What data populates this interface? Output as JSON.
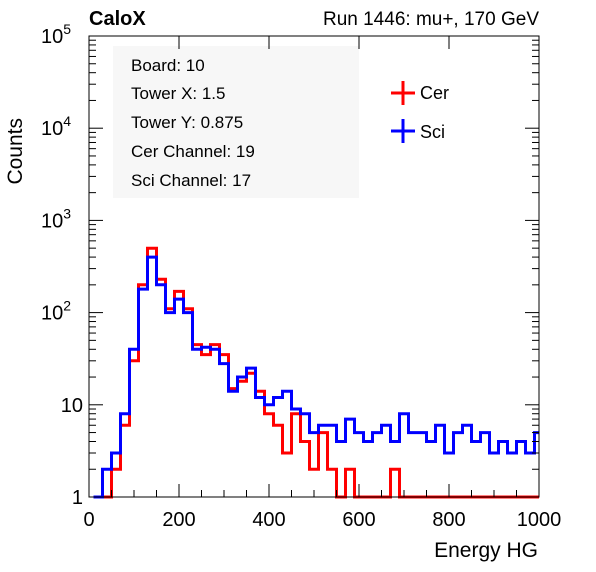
{
  "header": {
    "left": "CaloX",
    "right": "Run 1446: mu+, 170 GeV"
  },
  "info_box": [
    "Board: 10",
    "Tower X: 1.5",
    "Tower Y: 0.875",
    "Cer Channel: 19",
    "Sci Channel: 17"
  ],
  "chart_data": {
    "type": "line",
    "style": "step histogram",
    "xlabel": "Energy HG",
    "ylabel": "Counts",
    "xlim": [
      0,
      1000
    ],
    "ylim": [
      1,
      100000
    ],
    "yscale": "log",
    "x_ticks": [
      0,
      200,
      400,
      600,
      800,
      1000
    ],
    "x_tick_labels": [
      "0",
      "200",
      "400",
      "600",
      "800",
      "1000"
    ],
    "y_ticks": [
      1,
      10,
      100,
      1000,
      10000,
      100000
    ],
    "y_tick_labels": [
      {
        "base": "1",
        "exp": ""
      },
      {
        "base": "10",
        "exp": ""
      },
      {
        "base": "10",
        "exp": "2"
      },
      {
        "base": "10",
        "exp": "3"
      },
      {
        "base": "10",
        "exp": "4"
      },
      {
        "base": "10",
        "exp": "5"
      }
    ],
    "legend_position": "top-right",
    "grid": false,
    "series": [
      {
        "name": "Cer",
        "color": "#ff0000",
        "points": [
          [
            20,
            1
          ],
          [
            40,
            1
          ],
          [
            60,
            2
          ],
          [
            80,
            6
          ],
          [
            100,
            30
          ],
          [
            120,
            200
          ],
          [
            140,
            500
          ],
          [
            160,
            230
          ],
          [
            180,
            110
          ],
          [
            200,
            170
          ],
          [
            220,
            110
          ],
          [
            240,
            45
          ],
          [
            260,
            35
          ],
          [
            280,
            45
          ],
          [
            300,
            35
          ],
          [
            320,
            15
          ],
          [
            340,
            18
          ],
          [
            360,
            22
          ],
          [
            380,
            14
          ],
          [
            400,
            8
          ],
          [
            420,
            6
          ],
          [
            440,
            3
          ],
          [
            460,
            8
          ],
          [
            480,
            4
          ],
          [
            500,
            2
          ],
          [
            520,
            5
          ],
          [
            540,
            2
          ],
          [
            560,
            1
          ],
          [
            580,
            2
          ],
          [
            600,
            1
          ],
          [
            620,
            1
          ],
          [
            640,
            1
          ],
          [
            660,
            1
          ],
          [
            680,
            2
          ],
          [
            700,
            1
          ],
          [
            720,
            1
          ],
          [
            740,
            1
          ],
          [
            760,
            1
          ],
          [
            780,
            1
          ],
          [
            800,
            1
          ],
          [
            820,
            1
          ],
          [
            840,
            1
          ],
          [
            860,
            1
          ],
          [
            880,
            1
          ],
          [
            900,
            1
          ],
          [
            920,
            1
          ],
          [
            940,
            1
          ],
          [
            960,
            1
          ],
          [
            980,
            1
          ],
          [
            1000,
            1
          ]
        ]
      },
      {
        "name": "Sci",
        "color": "#0000ff",
        "points": [
          [
            20,
            1
          ],
          [
            40,
            2
          ],
          [
            60,
            3
          ],
          [
            80,
            8
          ],
          [
            100,
            40
          ],
          [
            120,
            180
          ],
          [
            140,
            400
          ],
          [
            160,
            200
          ],
          [
            180,
            100
          ],
          [
            200,
            140
          ],
          [
            220,
            100
          ],
          [
            240,
            40
          ],
          [
            260,
            42
          ],
          [
            280,
            40
          ],
          [
            300,
            28
          ],
          [
            320,
            14
          ],
          [
            340,
            20
          ],
          [
            360,
            25
          ],
          [
            380,
            12
          ],
          [
            400,
            10
          ],
          [
            420,
            12
          ],
          [
            440,
            14
          ],
          [
            460,
            9
          ],
          [
            480,
            8
          ],
          [
            500,
            5
          ],
          [
            520,
            6
          ],
          [
            540,
            6
          ],
          [
            560,
            4
          ],
          [
            580,
            7
          ],
          [
            600,
            5
          ],
          [
            620,
            4
          ],
          [
            640,
            5
          ],
          [
            660,
            6
          ],
          [
            680,
            4
          ],
          [
            700,
            8
          ],
          [
            720,
            5
          ],
          [
            740,
            5
          ],
          [
            760,
            4
          ],
          [
            780,
            6
          ],
          [
            800,
            3
          ],
          [
            820,
            5
          ],
          [
            840,
            6
          ],
          [
            860,
            4
          ],
          [
            880,
            5
          ],
          [
            900,
            3
          ],
          [
            920,
            4
          ],
          [
            940,
            3
          ],
          [
            960,
            4
          ],
          [
            980,
            3
          ],
          [
            1000,
            5
          ]
        ]
      }
    ]
  }
}
